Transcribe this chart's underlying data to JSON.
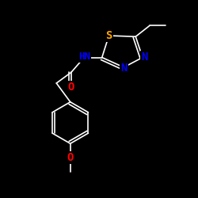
{
  "background_color": "#000000",
  "atom_colors": {
    "C": "#ffffff",
    "N": "#0000ff",
    "O": "#ff0000",
    "S": "#ffa500",
    "H": "#ffffff"
  },
  "font_size": 9,
  "bond_color": "#ffffff",
  "bond_width": 1.2,
  "figsize": [
    2.5,
    2.5
  ],
  "dpi": 100,
  "xlim": [
    0,
    10
  ],
  "ylim": [
    0,
    10
  ]
}
